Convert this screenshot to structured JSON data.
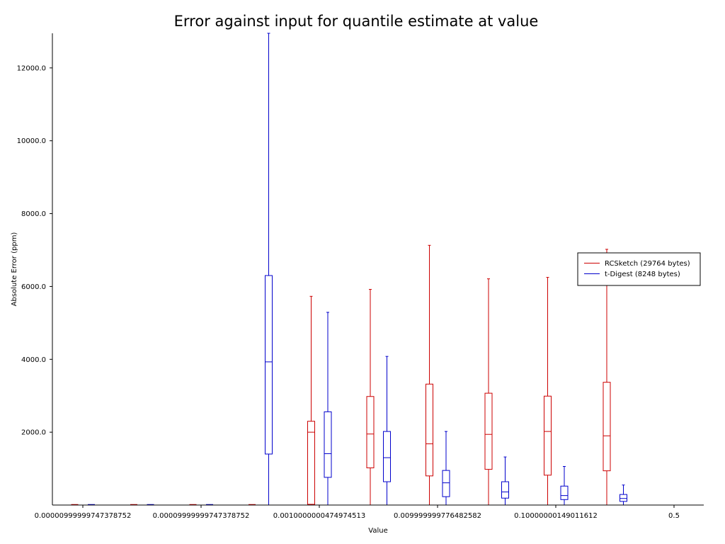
{
  "chart_data": {
    "type": "box",
    "title": "Error against input for quantile estimate at value",
    "xlabel": "Value",
    "ylabel": "Absolute Error (ppm)",
    "ylim": [
      0,
      12950
    ],
    "yticks": [
      2000.0,
      4000.0,
      6000.0,
      8000.0,
      10000.0,
      12000.0
    ],
    "ytick_labels": [
      "2000.0",
      "4000.0",
      "6000.0",
      "8000.0",
      "10000.0",
      "12000.0"
    ],
    "xticks": [
      {
        "label": "0.00000999999747378752",
        "group": 0.5
      },
      {
        "label": "0.00009999999747378752",
        "group": 2.5
      },
      {
        "label": "0.0010000000474974513",
        "group": 4.5
      },
      {
        "label": "0.009999999776482582",
        "group": 6.5
      },
      {
        "label": "0.10000000149011612",
        "group": 8.5
      },
      {
        "label": "0.5",
        "group": 10.5
      }
    ],
    "legend_position": "right",
    "series": [
      {
        "name": "RCSketch (29764 bytes)",
        "color": "#cc0000",
        "boxes": [
          {
            "min": 0,
            "q1": 0,
            "median": 0,
            "q3": 0,
            "max": 0
          },
          {
            "min": 0,
            "q1": 0,
            "median": 0,
            "q3": 0,
            "max": 0
          },
          {
            "min": 0,
            "q1": 0,
            "median": 0,
            "q3": 0,
            "max": 0
          },
          {
            "min": 0,
            "q1": 0,
            "median": 0,
            "q3": 0,
            "max": 0
          },
          {
            "min": 0,
            "q1": 0,
            "median": 0,
            "q3": 0,
            "max": 0
          },
          {
            "min": 0,
            "q1": 0,
            "median": 0,
            "q3": 0,
            "max": 0
          },
          {
            "min": 0,
            "q1": 0,
            "median": 0,
            "q3": 0,
            "max": 0
          },
          {
            "min": 0,
            "q1": 0,
            "median": 0,
            "q3": 0,
            "max": 0
          },
          {
            "min": 0,
            "q1": 0,
            "median": 0,
            "q3": 0,
            "max": 0
          },
          {
            "min": 0,
            "q1": 0,
            "median": 0,
            "q3": 0,
            "max": 0
          },
          {
            "min": 0,
            "q1": 0,
            "median": 0,
            "q3": 0,
            "max": 0
          },
          {
            "min": 0,
            "q1": 0,
            "median": 0,
            "q3": 0,
            "max": 0
          },
          {
            "min": 0,
            "q1": 0,
            "median": 0,
            "q3": 0,
            "max": 0
          },
          {
            "min": 0,
            "q1": 0,
            "median": 0,
            "q3": 0,
            "max": 0
          },
          {
            "min": 0,
            "q1": 20,
            "median": 2000,
            "q3": 2300,
            "max": 5730
          },
          {
            "min": 0,
            "q1": 1020,
            "median": 1950,
            "q3": 2980,
            "max": 5920
          },
          {
            "min": 0,
            "q1": 800,
            "median": 1680,
            "q3": 3320,
            "max": 7130
          },
          {
            "min": 0,
            "q1": 980,
            "median": 1940,
            "q3": 3070,
            "max": 6210
          },
          {
            "min": 0,
            "q1": 820,
            "median": 2020,
            "q3": 2990,
            "max": 6250
          },
          {
            "min": 0,
            "q1": 940,
            "median": 1900,
            "q3": 3370,
            "max": 7020
          }
        ]
      },
      {
        "name": "t-Digest (8248 bytes)",
        "color": "#0000cc",
        "boxes": [
          {
            "min": 0,
            "q1": 0,
            "median": 0,
            "q3": 0,
            "max": 0
          },
          {
            "min": 0,
            "q1": 0,
            "median": 0,
            "q3": 0,
            "max": 0
          },
          {
            "min": 0,
            "q1": 0,
            "median": 0,
            "q3": 0,
            "max": 0
          },
          {
            "min": 0,
            "q1": 0,
            "median": 0,
            "q3": 0,
            "max": 0
          },
          {
            "min": 0,
            "q1": 0,
            "median": 0,
            "q3": 0,
            "max": 0
          },
          {
            "min": 0,
            "q1": 0,
            "median": 0,
            "q3": 0,
            "max": 0
          },
          {
            "min": 0,
            "q1": 0,
            "median": 0,
            "q3": 0,
            "max": 0
          },
          {
            "min": 0,
            "q1": 0,
            "median": 0,
            "q3": 0,
            "max": 0
          },
          {
            "min": 0,
            "q1": 0,
            "median": 0,
            "q3": 0,
            "max": 0
          },
          {
            "min": 0,
            "q1": 0,
            "median": 0,
            "q3": 0,
            "max": 0
          },
          {
            "min": 0,
            "q1": 0,
            "median": 0,
            "q3": 0,
            "max": 0
          },
          {
            "min": 0,
            "q1": 0,
            "median": 0,
            "q3": 0,
            "max": 0
          },
          {
            "min": 0,
            "q1": 0,
            "median": 0,
            "q3": 0,
            "max": 0
          },
          {
            "min": 0,
            "q1": 1400,
            "median": 3930,
            "q3": 6300,
            "max": 12950
          },
          {
            "min": 0,
            "q1": 760,
            "median": 1410,
            "q3": 2560,
            "max": 5290
          },
          {
            "min": 0,
            "q1": 640,
            "median": 1300,
            "q3": 2020,
            "max": 4080
          },
          {
            "min": 0,
            "q1": 230,
            "median": 610,
            "q3": 950,
            "max": 2020
          },
          {
            "min": 0,
            "q1": 190,
            "median": 360,
            "q3": 640,
            "max": 1320
          },
          {
            "min": 0,
            "q1": 150,
            "median": 260,
            "q3": 520,
            "max": 1060
          },
          {
            "min": 0,
            "q1": 100,
            "median": 180,
            "q3": 290,
            "max": 550
          }
        ]
      }
    ]
  }
}
